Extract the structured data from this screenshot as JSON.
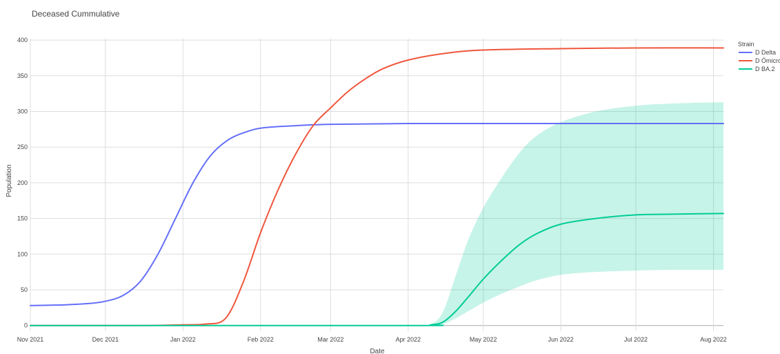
{
  "chart_data": {
    "type": "line",
    "title": "Deceased Cummulative",
    "xlabel": "Date",
    "ylabel": "Population",
    "x_type": "date",
    "xlim": [
      "2021-11-01",
      "2022-08-05"
    ],
    "ylim": [
      -8,
      402
    ],
    "x_ticks": [
      {
        "date": "2021-11-01",
        "label": "Nov 2021"
      },
      {
        "date": "2021-12-01",
        "label": "Dec 2021"
      },
      {
        "date": "2022-01-01",
        "label": "Jan 2022"
      },
      {
        "date": "2022-02-01",
        "label": "Feb 2022"
      },
      {
        "date": "2022-03-01",
        "label": "Mar 2022"
      },
      {
        "date": "2022-04-01",
        "label": "Apr 2022"
      },
      {
        "date": "2022-05-01",
        "label": "May 2022"
      },
      {
        "date": "2022-06-01",
        "label": "Jun 2022"
      },
      {
        "date": "2022-07-01",
        "label": "Jul 2022"
      },
      {
        "date": "2022-08-01",
        "label": "Aug 2022"
      }
    ],
    "y_ticks": [
      0,
      50,
      100,
      150,
      200,
      250,
      300,
      350,
      400
    ],
    "grid": true,
    "legend": {
      "title": "Strain",
      "placement": "top-right"
    },
    "series": [
      {
        "name": "D Delta",
        "color": "#636efa",
        "x": [
          "2021-11-01",
          "2021-11-15",
          "2021-11-25",
          "2021-12-01",
          "2021-12-08",
          "2021-12-15",
          "2021-12-22",
          "2021-12-29",
          "2022-01-05",
          "2022-01-12",
          "2022-01-19",
          "2022-01-26",
          "2022-02-02",
          "2022-02-15",
          "2022-03-01",
          "2022-04-01",
          "2022-06-01",
          "2022-08-05"
        ],
        "y": [
          28,
          29,
          31,
          34,
          42,
          62,
          100,
          150,
          200,
          238,
          260,
          271,
          277,
          280,
          282,
          283,
          283,
          283
        ]
      },
      {
        "name": "D Ómicron",
        "color": "#ef553b",
        "x": [
          "2021-11-01",
          "2021-12-15",
          "2022-01-01",
          "2022-01-10",
          "2022-01-18",
          "2022-01-25",
          "2022-02-01",
          "2022-02-08",
          "2022-02-15",
          "2022-02-22",
          "2022-03-01",
          "2022-03-08",
          "2022-03-15",
          "2022-03-22",
          "2022-04-01",
          "2022-04-15",
          "2022-05-01",
          "2022-06-01",
          "2022-07-01",
          "2022-08-05"
        ],
        "y": [
          0,
          0,
          1,
          2,
          10,
          60,
          130,
          190,
          240,
          280,
          305,
          328,
          346,
          360,
          372,
          381,
          386,
          388,
          389,
          389
        ]
      },
      {
        "name": "D BA.2",
        "color": "#00cc96",
        "x": [
          "2021-11-01",
          "2022-04-01",
          "2022-04-10",
          "2022-04-15",
          "2022-04-20",
          "2022-04-25",
          "2022-05-01",
          "2022-05-08",
          "2022-05-15",
          "2022-05-22",
          "2022-06-01",
          "2022-06-15",
          "2022-07-01",
          "2022-07-15",
          "2022-08-05"
        ],
        "y": [
          0,
          0,
          1,
          5,
          20,
          40,
          65,
          90,
          112,
          128,
          142,
          150,
          155,
          156,
          157
        ],
        "band_upper": [
          0,
          0,
          2,
          20,
          70,
          120,
          165,
          205,
          240,
          265,
          285,
          300,
          308,
          311,
          313
        ],
        "band_lower": [
          0,
          0,
          0,
          2,
          10,
          20,
          32,
          44,
          54,
          63,
          71,
          75,
          77,
          78,
          78
        ]
      }
    ]
  }
}
